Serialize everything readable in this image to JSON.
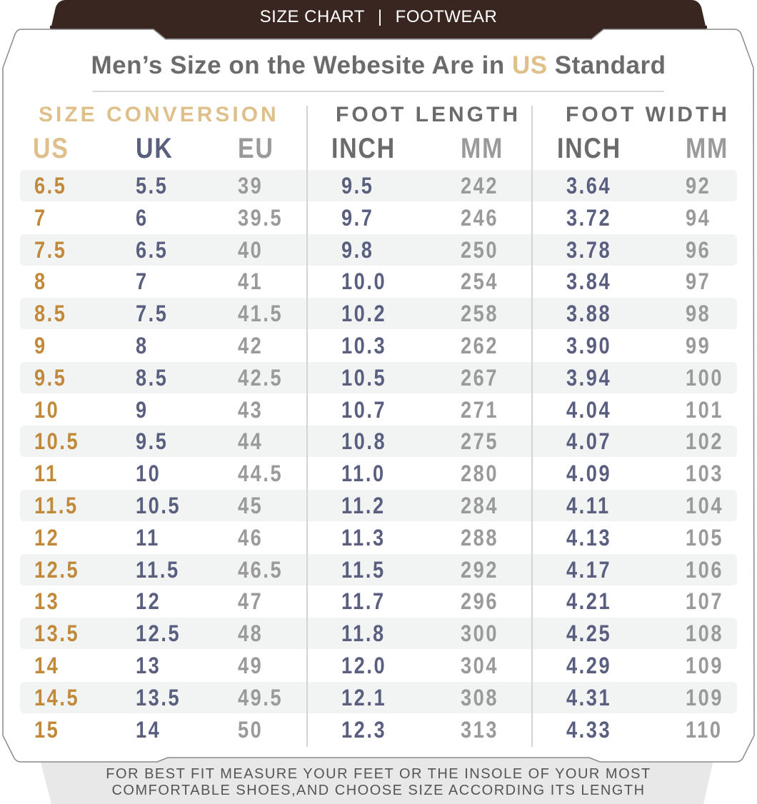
{
  "tab": {
    "left": "SIZE CHART",
    "separator": "|",
    "right": "FOOTWEAR"
  },
  "headline": {
    "before": "Men’s Size on the Webesite Are in ",
    "highlight": "US",
    "after": " Standard"
  },
  "groups": {
    "conversion": "SIZE CONVERSION",
    "length": "FOOT LENGTH",
    "width": "FOOT WIDTH"
  },
  "columns": {
    "us": "US",
    "uk": "UK",
    "eu": "EU",
    "length_inch": "INCH",
    "length_mm": "MM",
    "width_inch": "INCH",
    "width_mm": "MM"
  },
  "colors": {
    "brand_dark": "#3a2620",
    "gold": "#c08a3a",
    "gold_light": "#dfc08a",
    "slate": "#5a5f80",
    "gray": "#9a9a9a",
    "band": "#f2f4f3"
  },
  "rows": [
    [
      "6.5",
      "5.5",
      "39",
      "9.5",
      "242",
      "3.64",
      "92"
    ],
    [
      "7",
      "6",
      "39.5",
      "9.7",
      "246",
      "3.72",
      "94"
    ],
    [
      "7.5",
      "6.5",
      "40",
      "9.8",
      "250",
      "3.78",
      "96"
    ],
    [
      "8",
      "7",
      "41",
      "10.0",
      "254",
      "3.84",
      "97"
    ],
    [
      "8.5",
      "7.5",
      "41.5",
      "10.2",
      "258",
      "3.88",
      "98"
    ],
    [
      "9",
      "8",
      "42",
      "10.3",
      "262",
      "3.90",
      "99"
    ],
    [
      "9.5",
      "8.5",
      "42.5",
      "10.5",
      "267",
      "3.94",
      "100"
    ],
    [
      "10",
      "9",
      "43",
      "10.7",
      "271",
      "4.04",
      "101"
    ],
    [
      "10.5",
      "9.5",
      "44",
      "10.8",
      "275",
      "4.07",
      "102"
    ],
    [
      "11",
      "10",
      "44.5",
      "11.0",
      "280",
      "4.09",
      "103"
    ],
    [
      "11.5",
      "10.5",
      "45",
      "11.2",
      "284",
      "4.11",
      "104"
    ],
    [
      "12",
      "11",
      "46",
      "11.3",
      "288",
      "4.13",
      "105"
    ],
    [
      "12.5",
      "11.5",
      "46.5",
      "11.5",
      "292",
      "4.17",
      "106"
    ],
    [
      "13",
      "12",
      "47",
      "11.7",
      "296",
      "4.21",
      "107"
    ],
    [
      "13.5",
      "12.5",
      "48",
      "11.8",
      "300",
      "4.25",
      "108"
    ],
    [
      "14",
      "13",
      "49",
      "12.0",
      "304",
      "4.29",
      "109"
    ],
    [
      "14.5",
      "13.5",
      "49.5",
      "12.1",
      "308",
      "4.31",
      "109"
    ],
    [
      "15",
      "14",
      "50",
      "12.3",
      "313",
      "4.33",
      "110"
    ]
  ],
  "footer": {
    "line1": "FOR BEST FIT MEASURE YOUR FEET OR THE INSOLE OF YOUR MOST",
    "line2": "COMFORTABLE SHOES,AND CHOOSE SIZE ACCORDING ITS LENGTH"
  }
}
